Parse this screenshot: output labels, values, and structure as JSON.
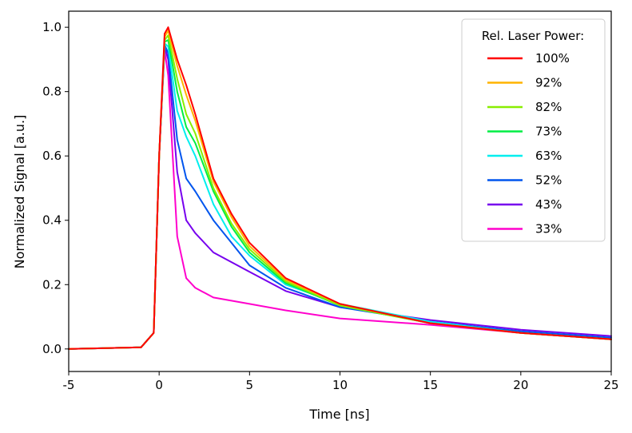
{
  "chart_data": {
    "type": "line",
    "title": "",
    "xlabel": "Time [ns]",
    "ylabel": "Normalized Signal [a.u.]",
    "xlim": [
      -5,
      25
    ],
    "ylim": [
      -0.07,
      1.05
    ],
    "xticks": [
      -5,
      0,
      5,
      10,
      15,
      20,
      25
    ],
    "xtick_labels": [
      "-5",
      "0",
      "5",
      "10",
      "15",
      "20",
      "25"
    ],
    "yticks": [
      0.0,
      0.2,
      0.4,
      0.6,
      0.8,
      1.0
    ],
    "ytick_labels": [
      "0.0",
      "0.2",
      "0.4",
      "0.6",
      "0.8",
      "1.0"
    ],
    "grid": false,
    "legend": {
      "title": "Rel. Laser Power:",
      "position": "top-right"
    },
    "x": [
      -5,
      -1,
      -0.3,
      0,
      0.3,
      0.5,
      1,
      1.5,
      2,
      3,
      4,
      5,
      7,
      10,
      15,
      20,
      25
    ],
    "series": [
      {
        "name": "100%",
        "color": "#ff0000",
        "values": [
          0.0,
          0.005,
          0.05,
          0.6,
          0.98,
          1.0,
          0.9,
          0.82,
          0.73,
          0.53,
          0.42,
          0.33,
          0.22,
          0.14,
          0.08,
          0.05,
          0.03
        ]
      },
      {
        "name": "92%",
        "color": "#ffb300",
        "values": [
          0.0,
          0.005,
          0.05,
          0.6,
          0.97,
          0.99,
          0.88,
          0.79,
          0.71,
          0.52,
          0.41,
          0.32,
          0.215,
          0.14,
          0.08,
          0.05,
          0.03
        ]
      },
      {
        "name": "82%",
        "color": "#88ee00",
        "values": [
          0.0,
          0.005,
          0.05,
          0.6,
          0.96,
          0.975,
          0.84,
          0.73,
          0.67,
          0.5,
          0.39,
          0.31,
          0.21,
          0.135,
          0.08,
          0.05,
          0.03
        ]
      },
      {
        "name": "73%",
        "color": "#00ee44",
        "values": [
          0.0,
          0.005,
          0.05,
          0.6,
          0.955,
          0.96,
          0.8,
          0.69,
          0.64,
          0.49,
          0.38,
          0.3,
          0.205,
          0.135,
          0.08,
          0.05,
          0.03
        ]
      },
      {
        "name": "63%",
        "color": "#00eeee",
        "values": [
          0.0,
          0.005,
          0.05,
          0.6,
          0.95,
          0.94,
          0.74,
          0.66,
          0.6,
          0.45,
          0.35,
          0.29,
          0.2,
          0.14,
          0.085,
          0.05,
          0.03
        ]
      },
      {
        "name": "52%",
        "color": "#0055ee",
        "values": [
          0.0,
          0.005,
          0.05,
          0.6,
          0.945,
          0.92,
          0.65,
          0.53,
          0.49,
          0.4,
          0.33,
          0.26,
          0.19,
          0.13,
          0.085,
          0.055,
          0.035
        ]
      },
      {
        "name": "43%",
        "color": "#7700ee",
        "values": [
          0.0,
          0.005,
          0.05,
          0.6,
          0.94,
          0.9,
          0.55,
          0.4,
          0.36,
          0.3,
          0.27,
          0.24,
          0.18,
          0.13,
          0.09,
          0.06,
          0.04
        ]
      },
      {
        "name": "33%",
        "color": "#ff00cc",
        "values": [
          0.0,
          0.005,
          0.05,
          0.6,
          0.93,
          0.85,
          0.35,
          0.22,
          0.19,
          0.16,
          0.15,
          0.14,
          0.12,
          0.095,
          0.075,
          0.05,
          0.03
        ]
      }
    ]
  }
}
